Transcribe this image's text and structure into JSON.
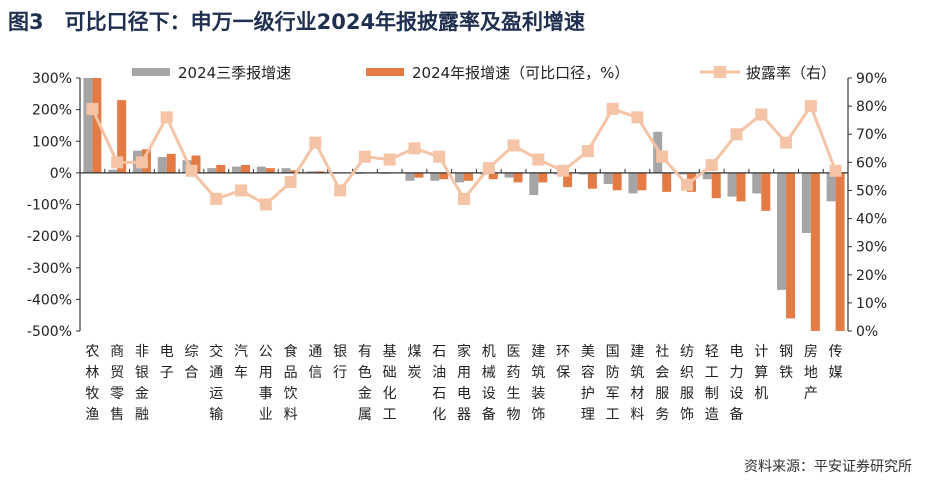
{
  "title": "图3　可比口径下：申万一级行业2024年报披露率及盈利增速",
  "source": "资料来源：平安证券研究所",
  "chart_data": {
    "type": "bar+line",
    "categories": [
      "农林牧渔",
      "商贸零售",
      "非银金融",
      "电子",
      "综合",
      "交通运输",
      "汽车",
      "公用事业",
      "食品饮料",
      "通信",
      "银行",
      "有色金属",
      "基础化工",
      "煤炭",
      "石油石化",
      "家用电器",
      "机械设备",
      "医药生物",
      "建筑装饰",
      "环保",
      "美容护理",
      "国防军工",
      "建筑材料",
      "社会服务",
      "纺织服饰",
      "轻工制造",
      "电力设备",
      "计算机",
      "钢铁",
      "房地产",
      "传媒"
    ],
    "series": [
      {
        "name": "2024三季报增速",
        "type": "bar",
        "axis": "left",
        "color": "#a5a5a7",
        "values": [
          300,
          10,
          70,
          50,
          40,
          15,
          20,
          20,
          15,
          5,
          0,
          -3,
          -3,
          -25,
          -25,
          -30,
          -5,
          -15,
          -70,
          -5,
          -5,
          -35,
          -65,
          130,
          -5,
          -20,
          -75,
          -65,
          -370,
          -190,
          -90
        ]
      },
      {
        "name": "2024年报增速（可比口径，%）",
        "type": "bar",
        "axis": "left",
        "color": "#e57b44",
        "values": [
          300,
          230,
          75,
          60,
          55,
          25,
          25,
          15,
          8,
          5,
          0,
          0,
          0,
          -15,
          -20,
          -25,
          -20,
          -30,
          -30,
          -45,
          -50,
          -55,
          -55,
          -60,
          -60,
          -80,
          -90,
          -120,
          -460,
          -500,
          -500
        ]
      },
      {
        "name": "披露率（右）",
        "type": "line",
        "axis": "right",
        "color": "#f5c3a5",
        "values": [
          79,
          60,
          60,
          76,
          57,
          47,
          50,
          45,
          53,
          67,
          50,
          62,
          61,
          65,
          62,
          47,
          58,
          66,
          61,
          57,
          64,
          79,
          76,
          62,
          52,
          59,
          70,
          77,
          67,
          80,
          57
        ]
      }
    ],
    "left_axis": {
      "ylim": [
        -500,
        300
      ],
      "ticks": [
        "300%",
        "200%",
        "100%",
        "0%",
        "-100%",
        "-200%",
        "-300%",
        "-400%",
        "-500%"
      ]
    },
    "right_axis": {
      "ylim": [
        0,
        90
      ],
      "ticks": [
        "90%",
        "80%",
        "70%",
        "60%",
        "50%",
        "40%",
        "30%",
        "20%",
        "10%",
        "0%"
      ]
    },
    "legend": "top"
  }
}
